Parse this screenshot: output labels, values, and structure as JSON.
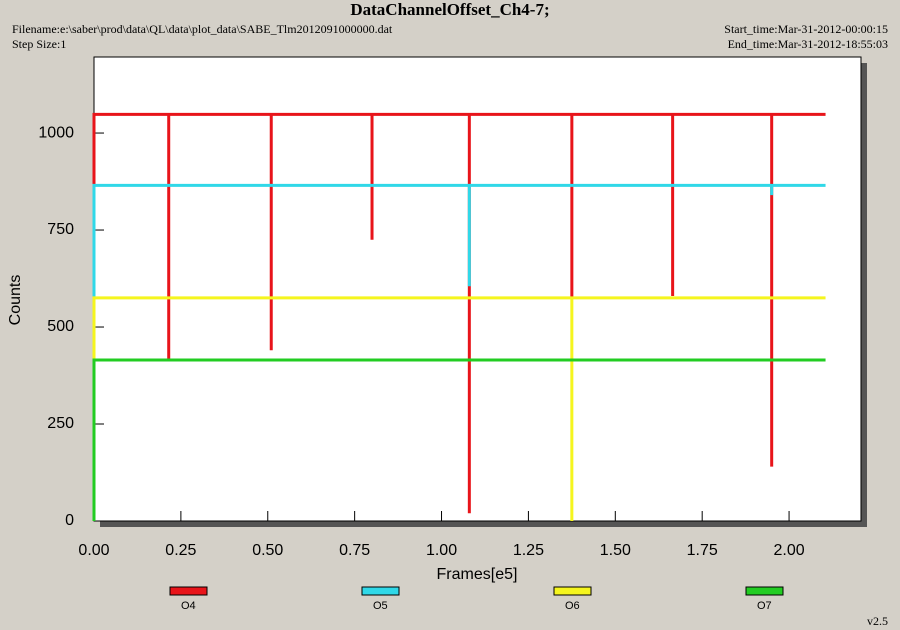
{
  "chart_data": {
    "type": "line",
    "title": "DataChannelOffset_Ch4-7;",
    "filename": "Filename:e:\\saber\\prod\\data\\QL\\data\\plot_data\\SABE_Tlm2012091000000.dat",
    "step_size": "Step Size:1",
    "start_time": "Start_time:Mar-31-2012-00:00:15",
    "end_time": "End_time:Mar-31-2012-18:55:03",
    "version": "v2.5",
    "xlabel": "Frames[e5]",
    "ylabel": "Counts",
    "xlim": [
      0,
      2.207
    ],
    "ylim": [
      0,
      1196
    ],
    "xticks": [
      {
        "value": 0,
        "label": "0.00"
      },
      {
        "value": 0.25,
        "label": "0.25"
      },
      {
        "value": 0.5,
        "label": "0.50"
      },
      {
        "value": 0.75,
        "label": "0.75"
      },
      {
        "value": 1,
        "label": "1.00"
      },
      {
        "value": 1.25,
        "label": "1.25"
      },
      {
        "value": 1.5,
        "label": "1.50"
      },
      {
        "value": 1.75,
        "label": "1.75"
      },
      {
        "value": 2,
        "label": "2.00"
      }
    ],
    "yticks": [
      0,
      250,
      500,
      750,
      1000
    ],
    "series": [
      {
        "name": "O4",
        "color": "#e8141a",
        "x": [
          0,
          0,
          0.215,
          0.215,
          0.215,
          0.51,
          0.51,
          0.51,
          0.8,
          0.8,
          0.8,
          1.08,
          1.08,
          1.08,
          1.375,
          1.375,
          1.375,
          1.665,
          1.665,
          1.665,
          1.95,
          1.95,
          1.95,
          2.105
        ],
        "values": [
          0,
          1048,
          1048,
          415,
          1048,
          1048,
          440,
          1048,
          1048,
          725,
          1048,
          1048,
          20,
          1048,
          1048,
          575,
          1048,
          1048,
          580,
          1048,
          1048,
          140,
          1048,
          1048
        ]
      },
      {
        "name": "O5",
        "color": "#30d8e8",
        "x": [
          0,
          0,
          1.08,
          1.08,
          1.08,
          1.95,
          1.95,
          1.95,
          2.105
        ],
        "values": [
          0,
          865,
          865,
          605,
          865,
          865,
          840,
          865,
          865
        ]
      },
      {
        "name": "O6",
        "color": "#f5f51e",
        "x": [
          0,
          0,
          1.375,
          1.375,
          1.375,
          2.105
        ],
        "values": [
          0,
          575,
          575,
          0,
          575,
          575
        ]
      },
      {
        "name": "O7",
        "color": "#22cc22",
        "x": [
          0,
          0,
          2.105
        ],
        "values": [
          0,
          415,
          415
        ]
      }
    ]
  }
}
